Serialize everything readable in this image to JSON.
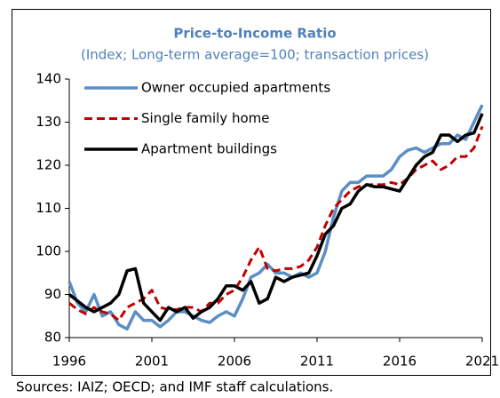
{
  "chart_data": {
    "type": "line",
    "title": "Price-to-Income Ratio",
    "subtitle": "(Index; Long-term average=100; transaction prices)",
    "source": "Sources: IAIZ; OECD; and IMF staff calculations.",
    "x": [
      1996,
      1996.5,
      1997,
      1997.5,
      1998,
      1998.5,
      1999,
      1999.5,
      2000,
      2000.5,
      2001,
      2001.5,
      2002,
      2002.5,
      2003,
      2003.5,
      2004,
      2004.5,
      2005,
      2005.5,
      2006,
      2006.5,
      2007,
      2007.5,
      2008,
      2008.5,
      2009,
      2009.5,
      2010,
      2010.5,
      2011,
      2011.5,
      2012,
      2012.5,
      2013,
      2013.5,
      2014,
      2014.5,
      2015,
      2015.5,
      2016,
      2016.5,
      2017,
      2017.5,
      2018,
      2018.5,
      2019,
      2019.5,
      2020,
      2020.5,
      2021
    ],
    "series": [
      {
        "name": "Owner occupied apartments",
        "color": "#5b8ec4",
        "dash": false,
        "values": [
          93,
          88,
          86,
          90,
          85,
          86,
          83,
          82,
          86,
          84,
          84,
          82.5,
          84,
          86,
          86,
          85,
          84,
          83.5,
          85,
          86,
          85,
          89,
          94,
          95,
          97,
          95,
          95,
          94,
          95,
          94,
          95,
          100,
          108,
          114,
          116,
          116,
          117.5,
          117.5,
          117.5,
          119,
          122,
          123.5,
          124,
          123,
          124,
          125,
          125,
          127,
          126,
          130,
          134
        ]
      },
      {
        "name": "Single family home",
        "color": "#c00000",
        "dash": true,
        "values": [
          88,
          86.5,
          85.5,
          87,
          86,
          85.5,
          84,
          87,
          88,
          89,
          91,
          87,
          86.5,
          86.5,
          87,
          87,
          86,
          88,
          88,
          90,
          91,
          94,
          98,
          101,
          96,
          95.5,
          96,
          96,
          96.5,
          98,
          101,
          106,
          110,
          112,
          114,
          115,
          115.5,
          115.5,
          115.5,
          116,
          115.5,
          117,
          119,
          120,
          121,
          119,
          120,
          122,
          122,
          124,
          129
        ]
      },
      {
        "name": "Apartment buildings",
        "color": "#000000",
        "dash": false,
        "values": [
          90,
          88.5,
          87,
          86,
          87,
          88,
          90,
          95.5,
          96,
          88,
          86,
          84,
          87,
          86,
          87,
          84.5,
          86,
          87,
          89,
          92,
          92,
          91,
          93,
          88,
          89,
          94,
          93,
          94,
          94.5,
          95,
          99,
          104,
          106,
          110,
          111,
          114,
          115.5,
          115,
          115,
          114.5,
          114,
          117,
          120,
          122,
          123,
          127,
          127,
          125.5,
          127,
          127.5,
          132
        ]
      }
    ],
    "xlim": [
      1996,
      2021
    ],
    "xticks": [
      1996,
      2001,
      2006,
      2011,
      2016,
      2021
    ],
    "ylim": [
      80,
      140
    ],
    "yticks": [
      80,
      90,
      100,
      110,
      120,
      130,
      140
    ],
    "grid": false,
    "legend": "upper left"
  }
}
